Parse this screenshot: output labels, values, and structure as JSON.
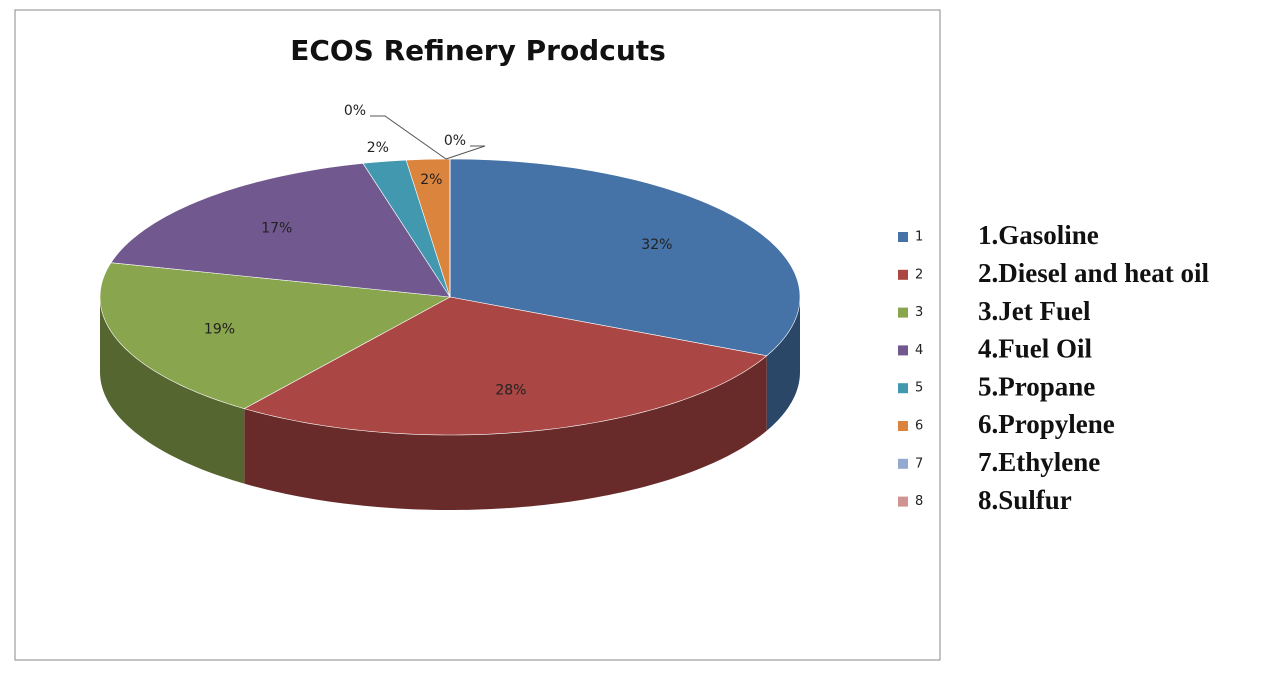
{
  "chart_data": {
    "type": "pie",
    "title": "ECOS Refinery Prodcuts",
    "categories": [
      "1",
      "2",
      "3",
      "4",
      "5",
      "6",
      "7",
      "8"
    ],
    "values": [
      32,
      28,
      19,
      17,
      2,
      2,
      0,
      0
    ],
    "value_labels": [
      "32%",
      "28%",
      "19%",
      "17%",
      "2%",
      "2%",
      "0%",
      "0%"
    ],
    "colors": [
      "#4572a7",
      "#aa4643",
      "#89a54e",
      "#71588f",
      "#4198af",
      "#db843d",
      "#93a9cf",
      "#d19392"
    ],
    "legend": "right",
    "product_names": [
      "1.Gasoline",
      "2.Diesel and heat oil",
      "3.Jet Fuel",
      "4.Fuel Oil",
      "5.Propane",
      "6.Propylene",
      "7.Ethylene",
      "8.Sulfur"
    ]
  }
}
